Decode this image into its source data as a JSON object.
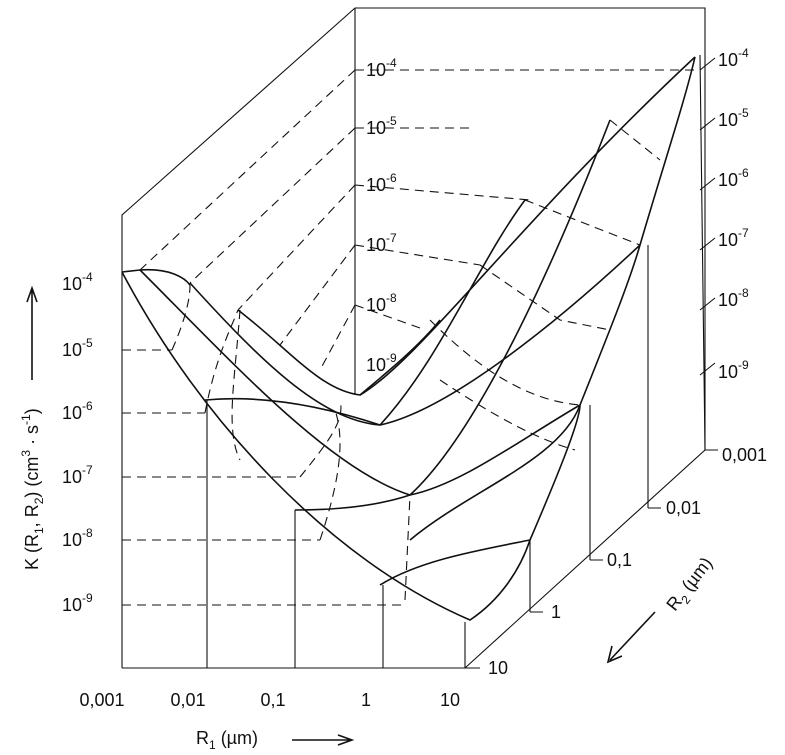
{
  "left_ticks": [
    {
      "base": "10",
      "exponent": "-4"
    },
    {
      "base": "10",
      "exponent": "-5"
    },
    {
      "base": "10",
      "exponent": "-6"
    },
    {
      "base": "10",
      "exponent": "-7"
    },
    {
      "base": "10",
      "exponent": "-8"
    },
    {
      "base": "10",
      "exponent": "-9"
    }
  ],
  "back_ticks": [
    {
      "base": "10",
      "exponent": "-4"
    },
    {
      "base": "10",
      "exponent": "-5"
    },
    {
      "base": "10",
      "exponent": "-6"
    },
    {
      "base": "10",
      "exponent": "-7"
    },
    {
      "base": "10",
      "exponent": "-8"
    },
    {
      "base": "10",
      "exponent": "-9"
    }
  ],
  "right_ticks": [
    {
      "base": "10",
      "exponent": "-4"
    },
    {
      "base": "10",
      "exponent": "-5"
    },
    {
      "base": "10",
      "exponent": "-6"
    },
    {
      "base": "10",
      "exponent": "-7"
    },
    {
      "base": "10",
      "exponent": "-8"
    },
    {
      "base": "10",
      "exponent": "-9"
    }
  ],
  "r1_ticks": [
    "0,001",
    "0,01",
    "0,1",
    "1",
    "10"
  ],
  "r2_ticks": [
    "0,001",
    "0,01",
    "0,1",
    "1",
    "10"
  ],
  "y_title": [
    "K (R",
    "1",
    ", R",
    "2",
    ") (cm",
    "3",
    " · s",
    "-1",
    ")"
  ],
  "r1_title": [
    "R",
    "1",
    " (µm)"
  ],
  "r2_title": [
    "R",
    "2",
    " (µm)"
  ]
}
